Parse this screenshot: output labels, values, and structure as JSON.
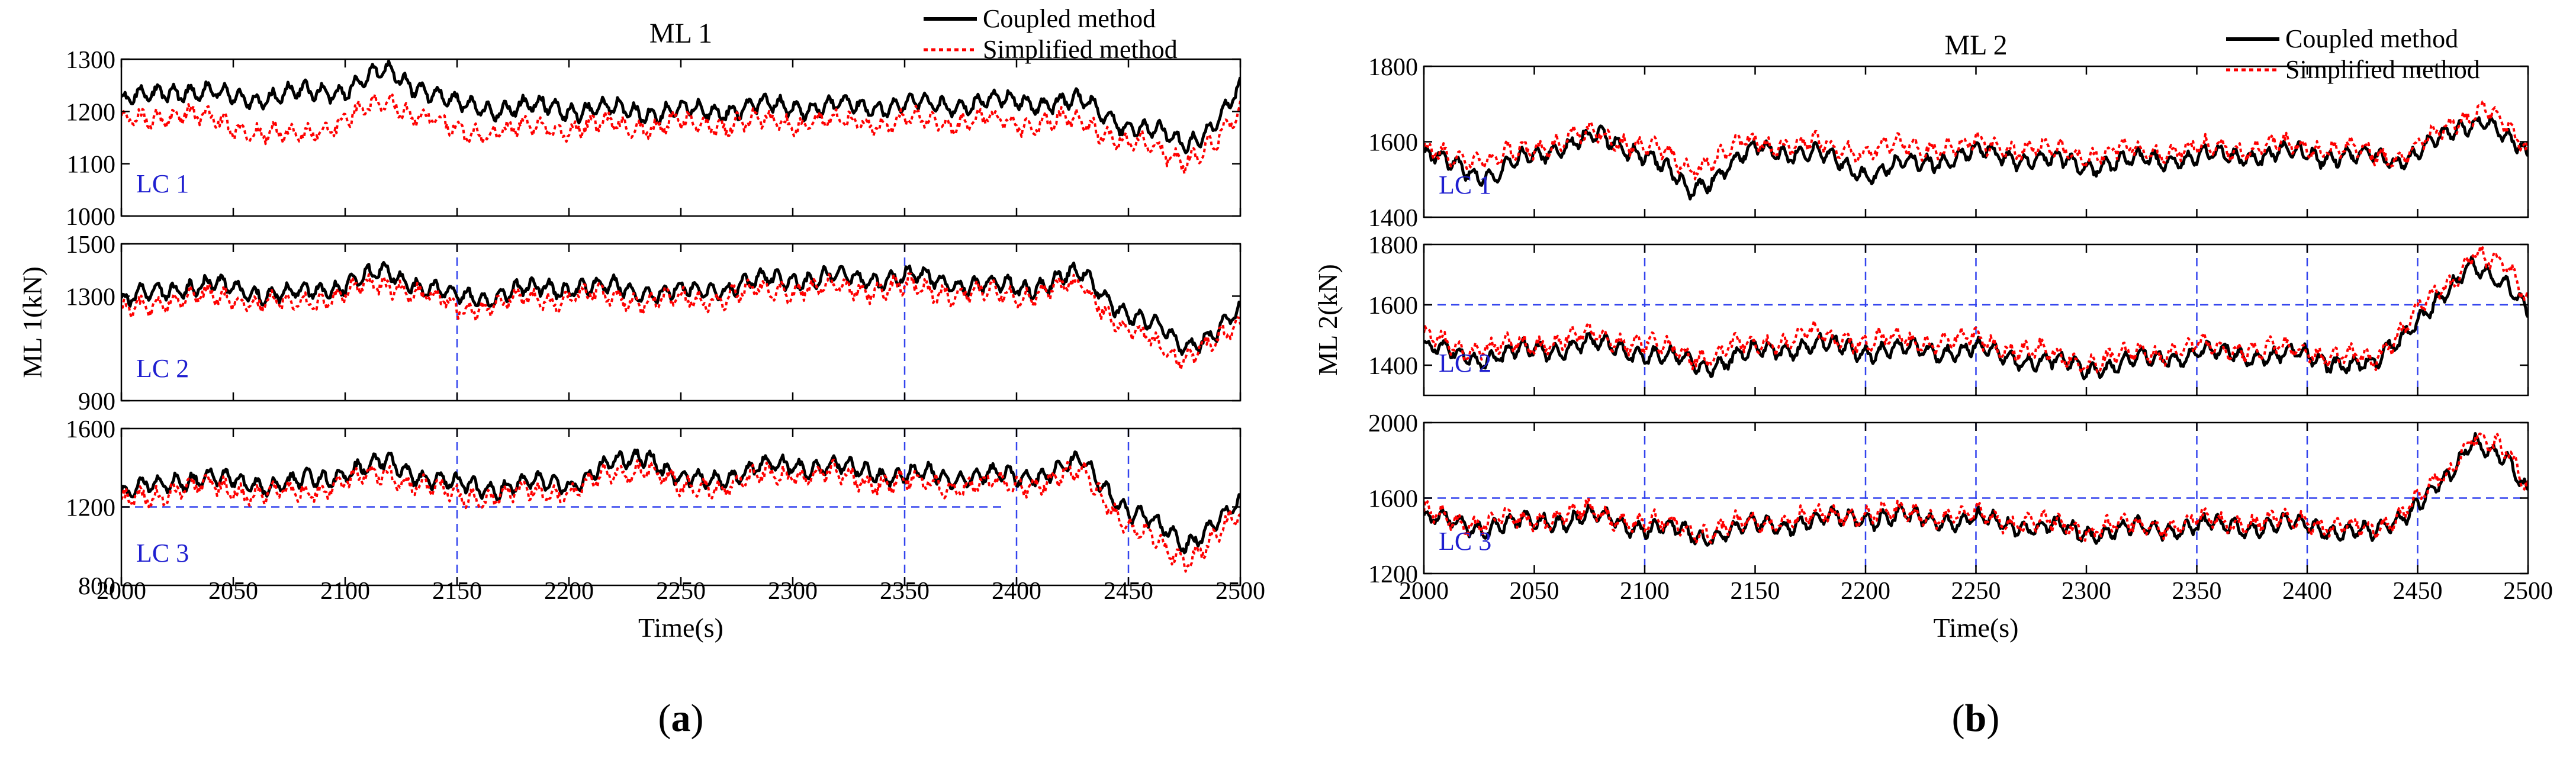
{
  "colors": {
    "coupled": "#000000",
    "simplified": "#ff0000",
    "lc_label": "#1f1fd0",
    "guide": "#3344ee"
  },
  "chart_data": [
    {
      "type": "line",
      "title": "ML 1",
      "subfigure_label": "(a)",
      "xlabel": "Time(s)",
      "ylabel": "ML 1(kN)",
      "x_range": [
        2000,
        2500
      ],
      "x_ticks": [
        2000,
        2050,
        2100,
        2150,
        2200,
        2250,
        2300,
        2350,
        2400,
        2450,
        2500
      ],
      "legend": {
        "position": "top-right",
        "entries": [
          "Coupled method",
          "Simplified method"
        ]
      },
      "grid": false,
      "subplots": [
        {
          "label": "LC 1",
          "ylim": [
            1000,
            1300
          ],
          "y_ticks": [
            1000,
            1100,
            1200,
            1300
          ],
          "guides": [],
          "series": [
            {
              "name": "Coupled method",
              "x": [
                2000,
                2025,
                2050,
                2075,
                2100,
                2120,
                2150,
                2200,
                2250,
                2300,
                2350,
                2400,
                2430,
                2450,
                2475,
                2490,
                2500
              ],
              "y": [
                1215,
                1245,
                1225,
                1230,
                1245,
                1275,
                1210,
                1205,
                1200,
                1210,
                1210,
                1220,
                1215,
                1175,
                1140,
                1180,
                1240
              ]
            },
            {
              "name": "Simplified method",
              "x": [
                2000,
                2025,
                2050,
                2075,
                2100,
                2120,
                2150,
                2200,
                2250,
                2300,
                2350,
                2400,
                2430,
                2450,
                2475,
                2490,
                2500
              ],
              "y": [
                1175,
                1200,
                1170,
                1150,
                1185,
                1220,
                1160,
                1170,
                1175,
                1180,
                1180,
                1180,
                1180,
                1140,
                1110,
                1140,
                1200
              ]
            }
          ]
        },
        {
          "label": "LC 2",
          "ylim": [
            900,
            1500
          ],
          "y_ticks": [
            900,
            1300,
            1500
          ],
          "guides": [
            {
              "type": "v",
              "x": 2150
            },
            {
              "type": "v",
              "x": 2350
            }
          ],
          "series": [
            {
              "name": "Coupled method",
              "x": [
                2000,
                2025,
                2050,
                2075,
                2100,
                2120,
                2150,
                2200,
                2250,
                2300,
                2350,
                2400,
                2430,
                2450,
                2475,
                2490,
                2500
              ],
              "y": [
                1270,
                1340,
                1330,
                1300,
                1350,
                1390,
                1290,
                1340,
                1310,
                1370,
                1370,
                1330,
                1380,
                1230,
                1120,
                1160,
                1240
              ]
            },
            {
              "name": "Simplified method",
              "x": [
                2000,
                2025,
                2050,
                2075,
                2100,
                2120,
                2150,
                2200,
                2250,
                2300,
                2350,
                2400,
                2430,
                2450,
                2475,
                2490,
                2500
              ],
              "y": [
                1230,
                1300,
                1290,
                1260,
                1310,
                1350,
                1250,
                1300,
                1280,
                1330,
                1330,
                1300,
                1340,
                1160,
                1070,
                1120,
                1200
              ]
            }
          ]
        },
        {
          "label": "LC 3",
          "ylim": [
            800,
            1600
          ],
          "y_ticks": [
            800,
            1200,
            1600
          ],
          "guides": [
            {
              "type": "h",
              "y": 1200,
              "x": [
                2000,
                2395
              ]
            },
            {
              "type": "v",
              "x": 2150
            },
            {
              "type": "v",
              "x": 2350
            },
            {
              "type": "v",
              "x": 2400
            },
            {
              "type": "v",
              "x": 2450
            }
          ],
          "series": [
            {
              "name": "Coupled method",
              "x": [
                2000,
                2025,
                2050,
                2075,
                2100,
                2120,
                2150,
                2200,
                2235,
                2250,
                2300,
                2350,
                2400,
                2430,
                2450,
                2475,
                2490,
                2500
              ],
              "y": [
                1250,
                1350,
                1330,
                1310,
                1380,
                1420,
                1300,
                1320,
                1480,
                1320,
                1420,
                1360,
                1350,
                1420,
                1180,
                1020,
                1120,
                1200
              ]
            },
            {
              "name": "Simplified method",
              "x": [
                2000,
                2025,
                2050,
                2075,
                2100,
                2120,
                2150,
                2200,
                2235,
                2250,
                2300,
                2350,
                2400,
                2430,
                2450,
                2475,
                2490,
                2500
              ],
              "y": [
                1210,
                1300,
                1290,
                1260,
                1330,
                1370,
                1250,
                1280,
                1420,
                1280,
                1380,
                1320,
                1310,
                1370,
                1100,
                930,
                1050,
                1160
              ]
            }
          ]
        }
      ]
    },
    {
      "type": "line",
      "title": "ML 2",
      "subfigure_label": "(b)",
      "xlabel": "Time(s)",
      "ylabel": "ML 2(kN)",
      "x_range": [
        2000,
        2500
      ],
      "x_ticks": [
        2000,
        2050,
        2100,
        2150,
        2200,
        2250,
        2300,
        2350,
        2400,
        2450,
        2500
      ],
      "legend": {
        "position": "top-right",
        "entries": [
          "Coupled method",
          "Simplified method"
        ]
      },
      "grid": false,
      "subplots": [
        {
          "label": "LC 1",
          "ylim": [
            1400,
            1800
          ],
          "y_ticks": [
            1400,
            1600,
            1800
          ],
          "guides": [],
          "series": [
            {
              "name": "Coupled method",
              "x": [
                2000,
                2030,
                2060,
                2080,
                2100,
                2120,
                2150,
                2175,
                2200,
                2250,
                2300,
                2350,
                2400,
                2440,
                2460,
                2480,
                2500
              ],
              "y": [
                1560,
                1510,
                1590,
                1610,
                1570,
                1470,
                1580,
                1570,
                1520,
                1570,
                1540,
                1560,
                1570,
                1550,
                1600,
                1670,
                1550
              ]
            },
            {
              "name": "Simplified method",
              "x": [
                2000,
                2030,
                2060,
                2080,
                2100,
                2120,
                2150,
                2175,
                2200,
                2250,
                2300,
                2350,
                2400,
                2440,
                2460,
                2480,
                2500
              ],
              "y": [
                1570,
                1550,
                1600,
                1620,
                1590,
                1530,
                1600,
                1590,
                1580,
                1590,
                1570,
                1580,
                1590,
                1560,
                1620,
                1700,
                1570
              ]
            }
          ]
        },
        {
          "label": "LC 2",
          "ylim": [
            1300,
            1800
          ],
          "y_ticks": [
            1400,
            1600,
            1800
          ],
          "guides": [
            {
              "type": "h",
              "y": 1600
            },
            {
              "type": "v",
              "x": 2100
            },
            {
              "type": "v",
              "x": 2200
            },
            {
              "type": "v",
              "x": 2250
            },
            {
              "type": "v",
              "x": 2350
            },
            {
              "type": "v",
              "x": 2400
            },
            {
              "type": "v",
              "x": 2450
            }
          ],
          "series": [
            {
              "name": "Coupled method",
              "x": [
                2000,
                2025,
                2050,
                2075,
                2100,
                2125,
                2150,
                2175,
                2200,
                2250,
                2300,
                2350,
                2400,
                2430,
                2450,
                2465,
                2475,
                2490,
                2500
              ],
              "y": [
                1460,
                1420,
                1450,
                1470,
                1440,
                1400,
                1440,
                1470,
                1450,
                1450,
                1390,
                1440,
                1430,
                1390,
                1560,
                1640,
                1740,
                1680,
                1560
              ]
            },
            {
              "name": "Simplified method",
              "x": [
                2000,
                2025,
                2050,
                2075,
                2100,
                2125,
                2150,
                2175,
                2200,
                2250,
                2300,
                2350,
                2400,
                2430,
                2450,
                2465,
                2475,
                2490,
                2500
              ],
              "y": [
                1490,
                1450,
                1470,
                1500,
                1470,
                1430,
                1470,
                1500,
                1480,
                1480,
                1410,
                1460,
                1450,
                1410,
                1590,
                1660,
                1790,
                1720,
                1600
              ]
            }
          ]
        },
        {
          "label": "LC 3",
          "ylim": [
            1200,
            2000
          ],
          "y_ticks": [
            1200,
            1600,
            2000
          ],
          "guides": [
            {
              "type": "h",
              "y": 1600
            },
            {
              "type": "v",
              "x": 2100
            },
            {
              "type": "v",
              "x": 2200
            },
            {
              "type": "v",
              "x": 2250
            },
            {
              "type": "v",
              "x": 2350
            },
            {
              "type": "v",
              "x": 2400
            },
            {
              "type": "v",
              "x": 2450
            }
          ],
          "series": [
            {
              "name": "Coupled method",
              "x": [
                2000,
                2025,
                2050,
                2075,
                2100,
                2125,
                2150,
                2175,
                2200,
                2250,
                2300,
                2350,
                2400,
                2430,
                2450,
                2465,
                2475,
                2490,
                2500
              ],
              "y": [
                1490,
                1450,
                1470,
                1500,
                1450,
                1400,
                1450,
                1480,
                1500,
                1480,
                1420,
                1450,
                1460,
                1400,
                1580,
                1700,
                1930,
                1800,
                1600
              ]
            },
            {
              "name": "Simplified method",
              "x": [
                2000,
                2025,
                2050,
                2075,
                2100,
                2125,
                2150,
                2175,
                2200,
                2250,
                2300,
                2350,
                2400,
                2430,
                2450,
                2465,
                2475,
                2490,
                2500
              ],
              "y": [
                1510,
                1470,
                1490,
                1520,
                1470,
                1420,
                1470,
                1500,
                1520,
                1500,
                1440,
                1470,
                1480,
                1420,
                1600,
                1730,
                1960,
                1840,
                1640
              ]
            }
          ]
        }
      ]
    }
  ]
}
